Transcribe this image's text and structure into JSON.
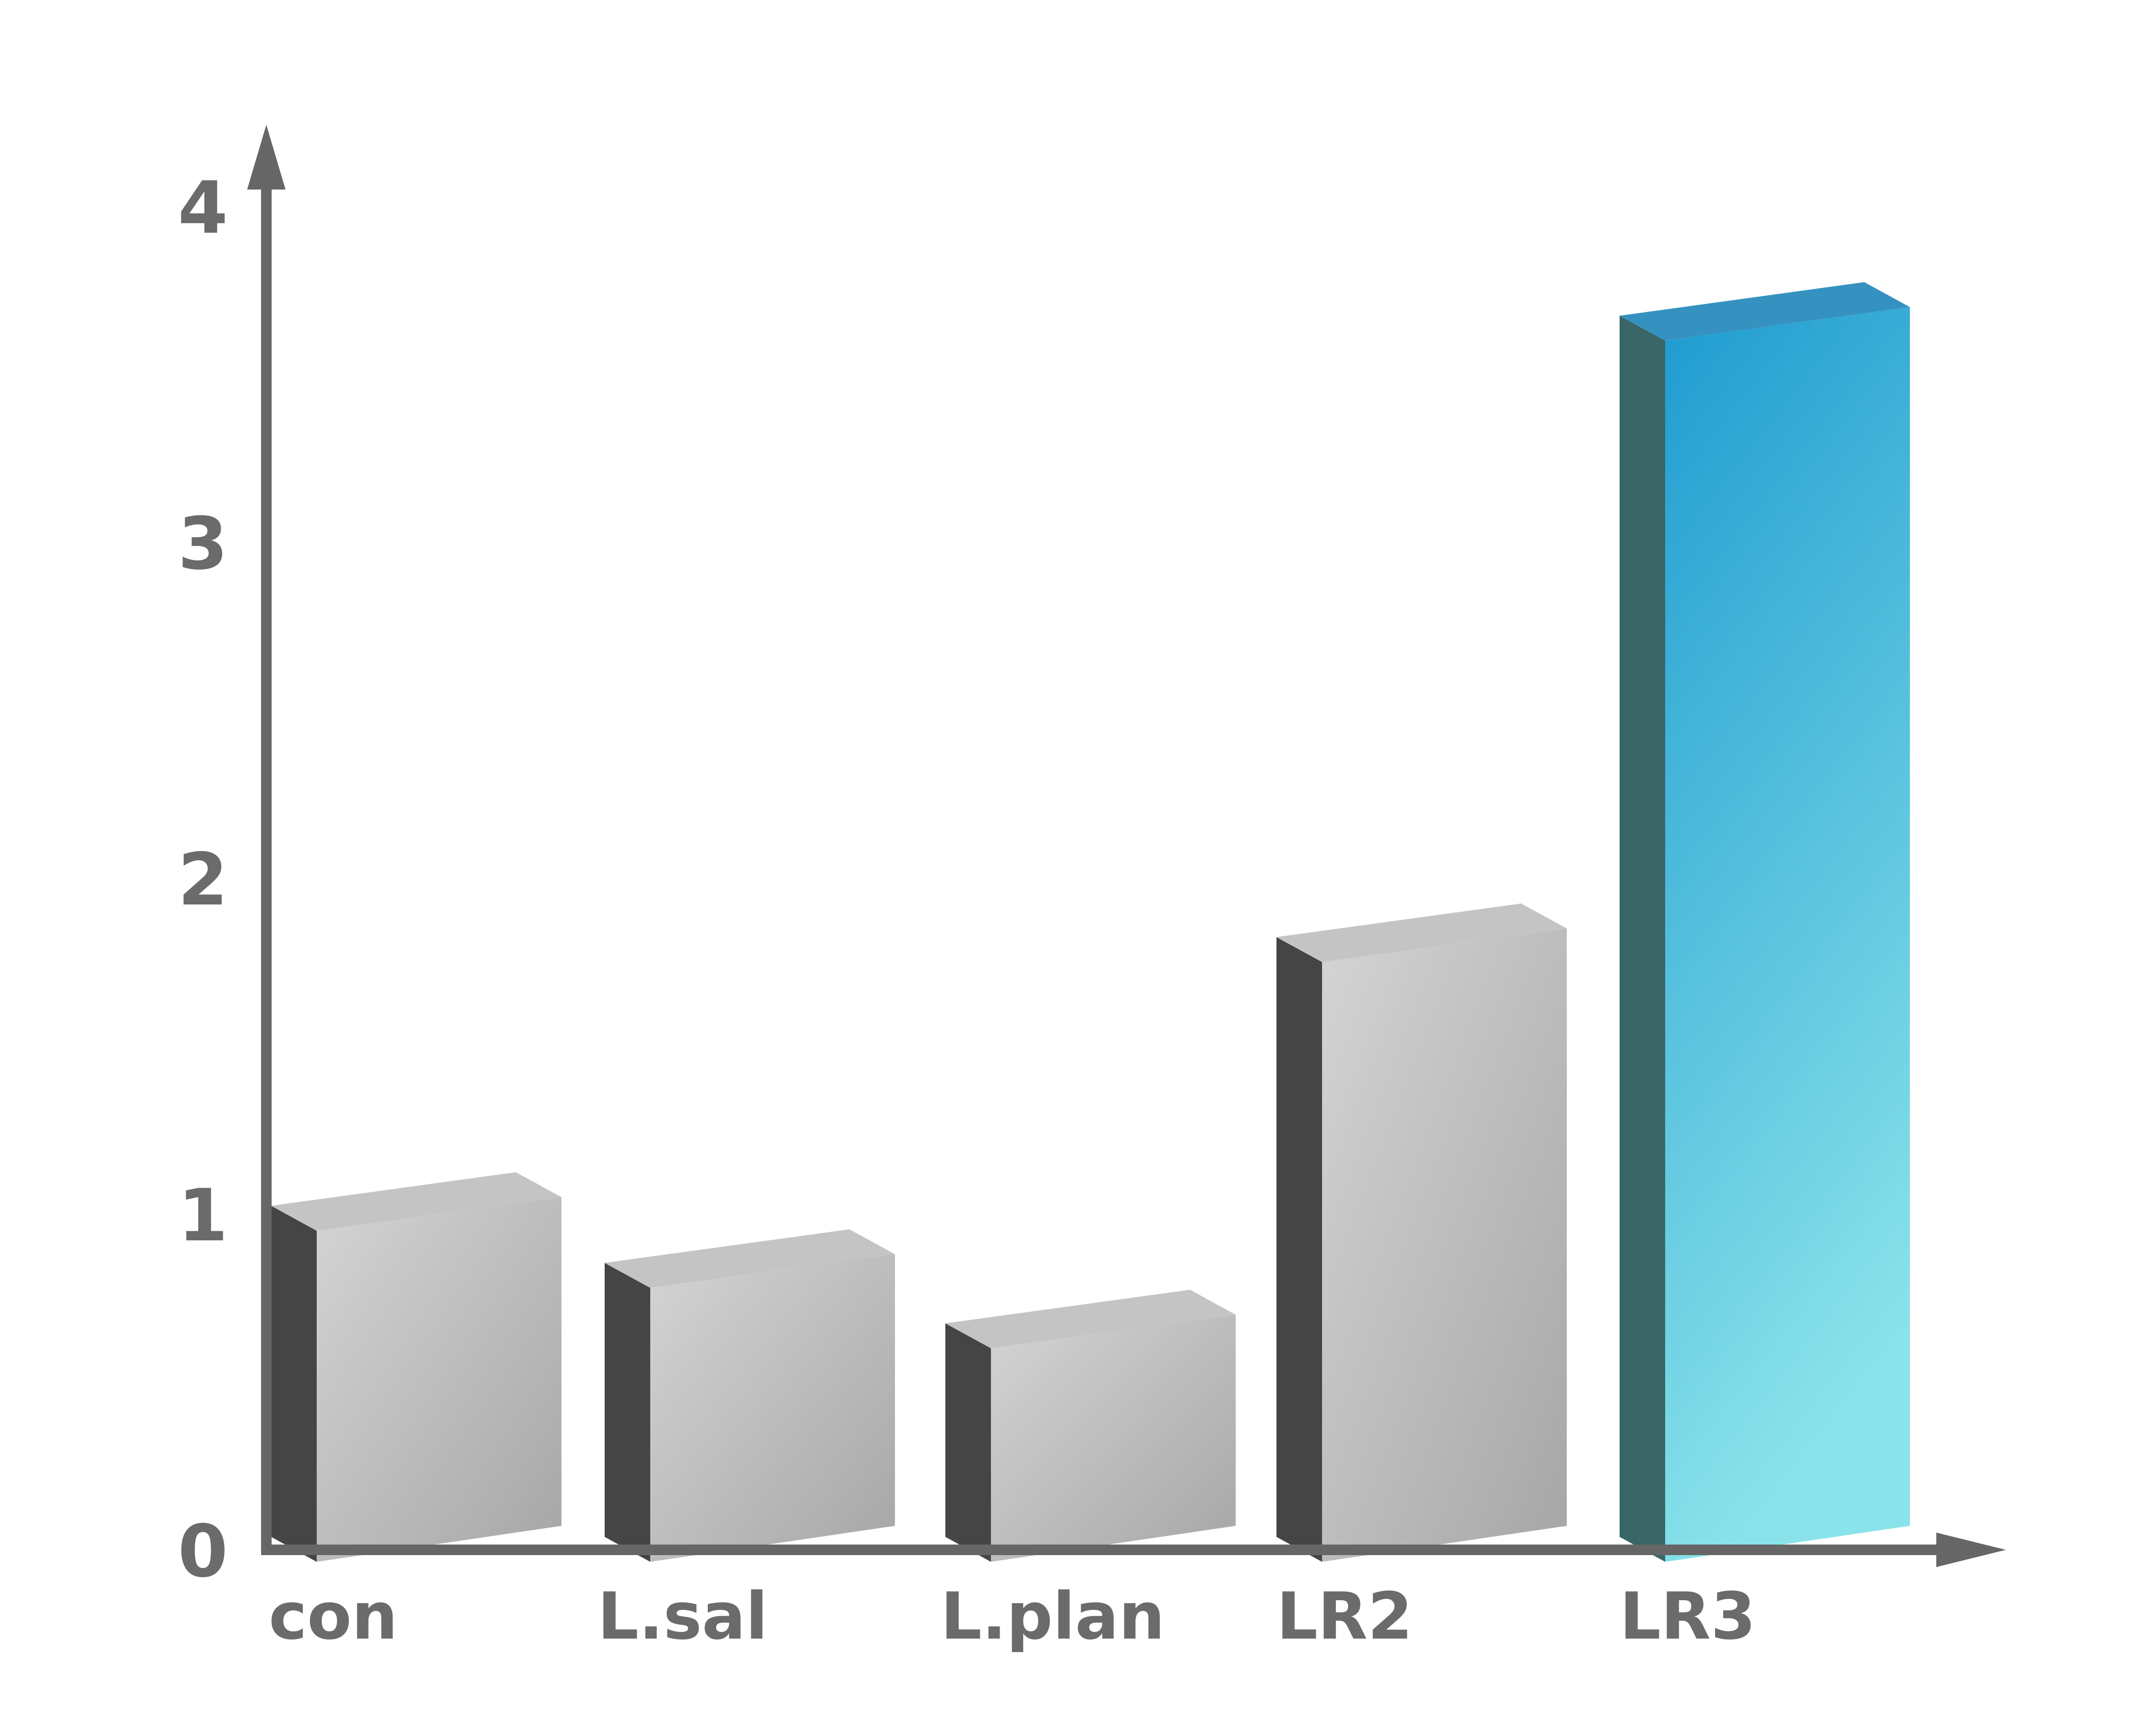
{
  "chart_data": {
    "type": "bar",
    "style": "3d",
    "title": "",
    "xlabel": "",
    "ylabel": "",
    "categories": [
      "con",
      "L.sal",
      "L.plan",
      "LR2",
      "LR3"
    ],
    "values": [
      0.95,
      0.78,
      0.6,
      1.75,
      3.6
    ],
    "ylim": [
      0,
      4
    ],
    "yticks": [
      {
        "value": 0,
        "label": "0"
      },
      {
        "value": 1,
        "label": "1"
      },
      {
        "value": 2,
        "label": "2"
      },
      {
        "value": 3,
        "label": "3"
      },
      {
        "value": 4,
        "label": "4"
      }
    ],
    "grid": false,
    "legend": "none",
    "colors": {
      "axis": "#666666",
      "tick_text": "#6b6b6b",
      "bar_front_light": "#d4d4d4",
      "bar_front_dark": "#a6a6a6",
      "bar_top": "#c4c4c4",
      "bar_side": "#454545",
      "highlight_front_top": "#1e9bd0",
      "highlight_front_bottom": "#8ae3ea",
      "highlight_top": "#3592c0",
      "highlight_side": "#3a6668"
    },
    "highlight_index": 4
  }
}
